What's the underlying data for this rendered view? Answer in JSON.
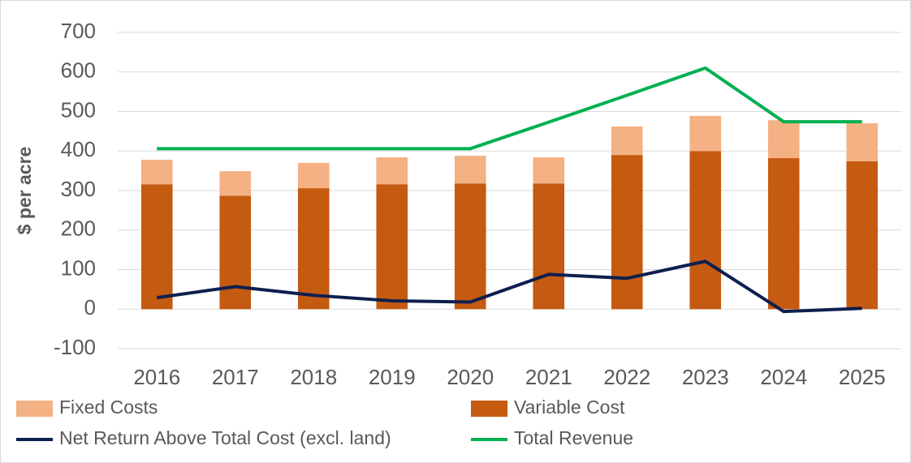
{
  "chart_data": {
    "type": "bar",
    "stacked": true,
    "y_label": "$ per acre",
    "categories": [
      "2016",
      "2017",
      "2018",
      "2019",
      "2020",
      "2021",
      "2022",
      "2023",
      "2024",
      "2025"
    ],
    "series": [
      {
        "name": "Variable Cost",
        "type": "bar",
        "color": "#c55a11",
        "values": [
          316,
          287,
          306,
          316,
          318,
          318,
          390,
          400,
          382,
          374
        ]
      },
      {
        "name": "Fixed Costs",
        "type": "bar",
        "color": "#f4b183",
        "values": [
          62,
          62,
          64,
          68,
          70,
          66,
          72,
          89,
          96,
          96
        ]
      },
      {
        "name": "Net Return Above Total Cost (excl. land)",
        "type": "line",
        "color": "#0d1f4f",
        "values": [
          29,
          57,
          35,
          21,
          18,
          88,
          78,
          121,
          -6,
          2
        ]
      },
      {
        "name": "Total Revenue",
        "type": "line",
        "color": "#00b050",
        "values": [
          406,
          406,
          406,
          406,
          406,
          473,
          541,
          610,
          474,
          474
        ]
      }
    ],
    "legend_order": [
      1,
      0,
      2,
      3
    ],
    "ylim": [
      -100,
      700
    ],
    "yticks": [
      -100,
      0,
      100,
      200,
      300,
      400,
      500,
      600,
      700
    ],
    "grid": true
  }
}
